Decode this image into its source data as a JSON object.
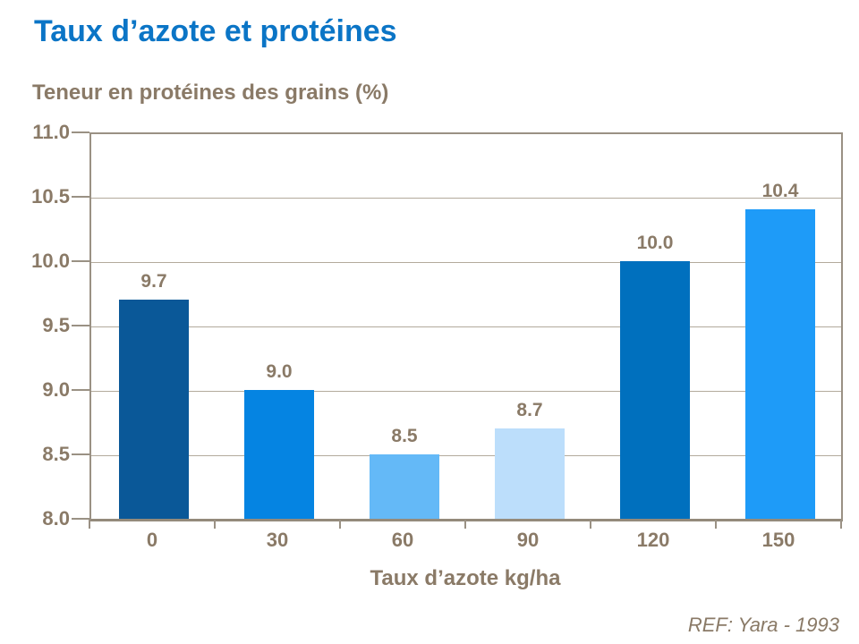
{
  "page": {
    "title": "Taux d’azote et protéines",
    "ref": "REF: Yara - 1993"
  },
  "chart_data": {
    "type": "bar",
    "title": "Taux d’azote et protéines",
    "y_axis_caption": "Teneur en protéines des grains (%)",
    "xlabel": "Taux d’azote kg/ha",
    "ylabel": "Teneur en protéines des grains (%)",
    "categories": [
      "0",
      "30",
      "60",
      "90",
      "120",
      "150"
    ],
    "values": [
      9.7,
      9.0,
      8.5,
      8.7,
      10.0,
      10.4
    ],
    "value_labels": [
      "9.7",
      "9.0",
      "8.5",
      "8.7",
      "10.0",
      "10.4"
    ],
    "bar_colors": [
      "#0a5898",
      "#0584e2",
      "#64b9f7",
      "#bcdefb",
      "#0070be",
      "#1e9bf8"
    ],
    "ylim": [
      8.0,
      11.0
    ],
    "y_tick_step": 0.5,
    "y_tick_labels": [
      "8.0",
      "8.5",
      "9.0",
      "9.5",
      "10.0",
      "10.5",
      "11.0"
    ],
    "grid": true,
    "legend": null,
    "annotation": "REF: Yara - 1993",
    "style_colors": {
      "title_blue": "#0b75c6",
      "label_brown": "#8a7a67",
      "grid_gray": "#b3aa9c",
      "frame_gray": "#9a9184"
    }
  }
}
